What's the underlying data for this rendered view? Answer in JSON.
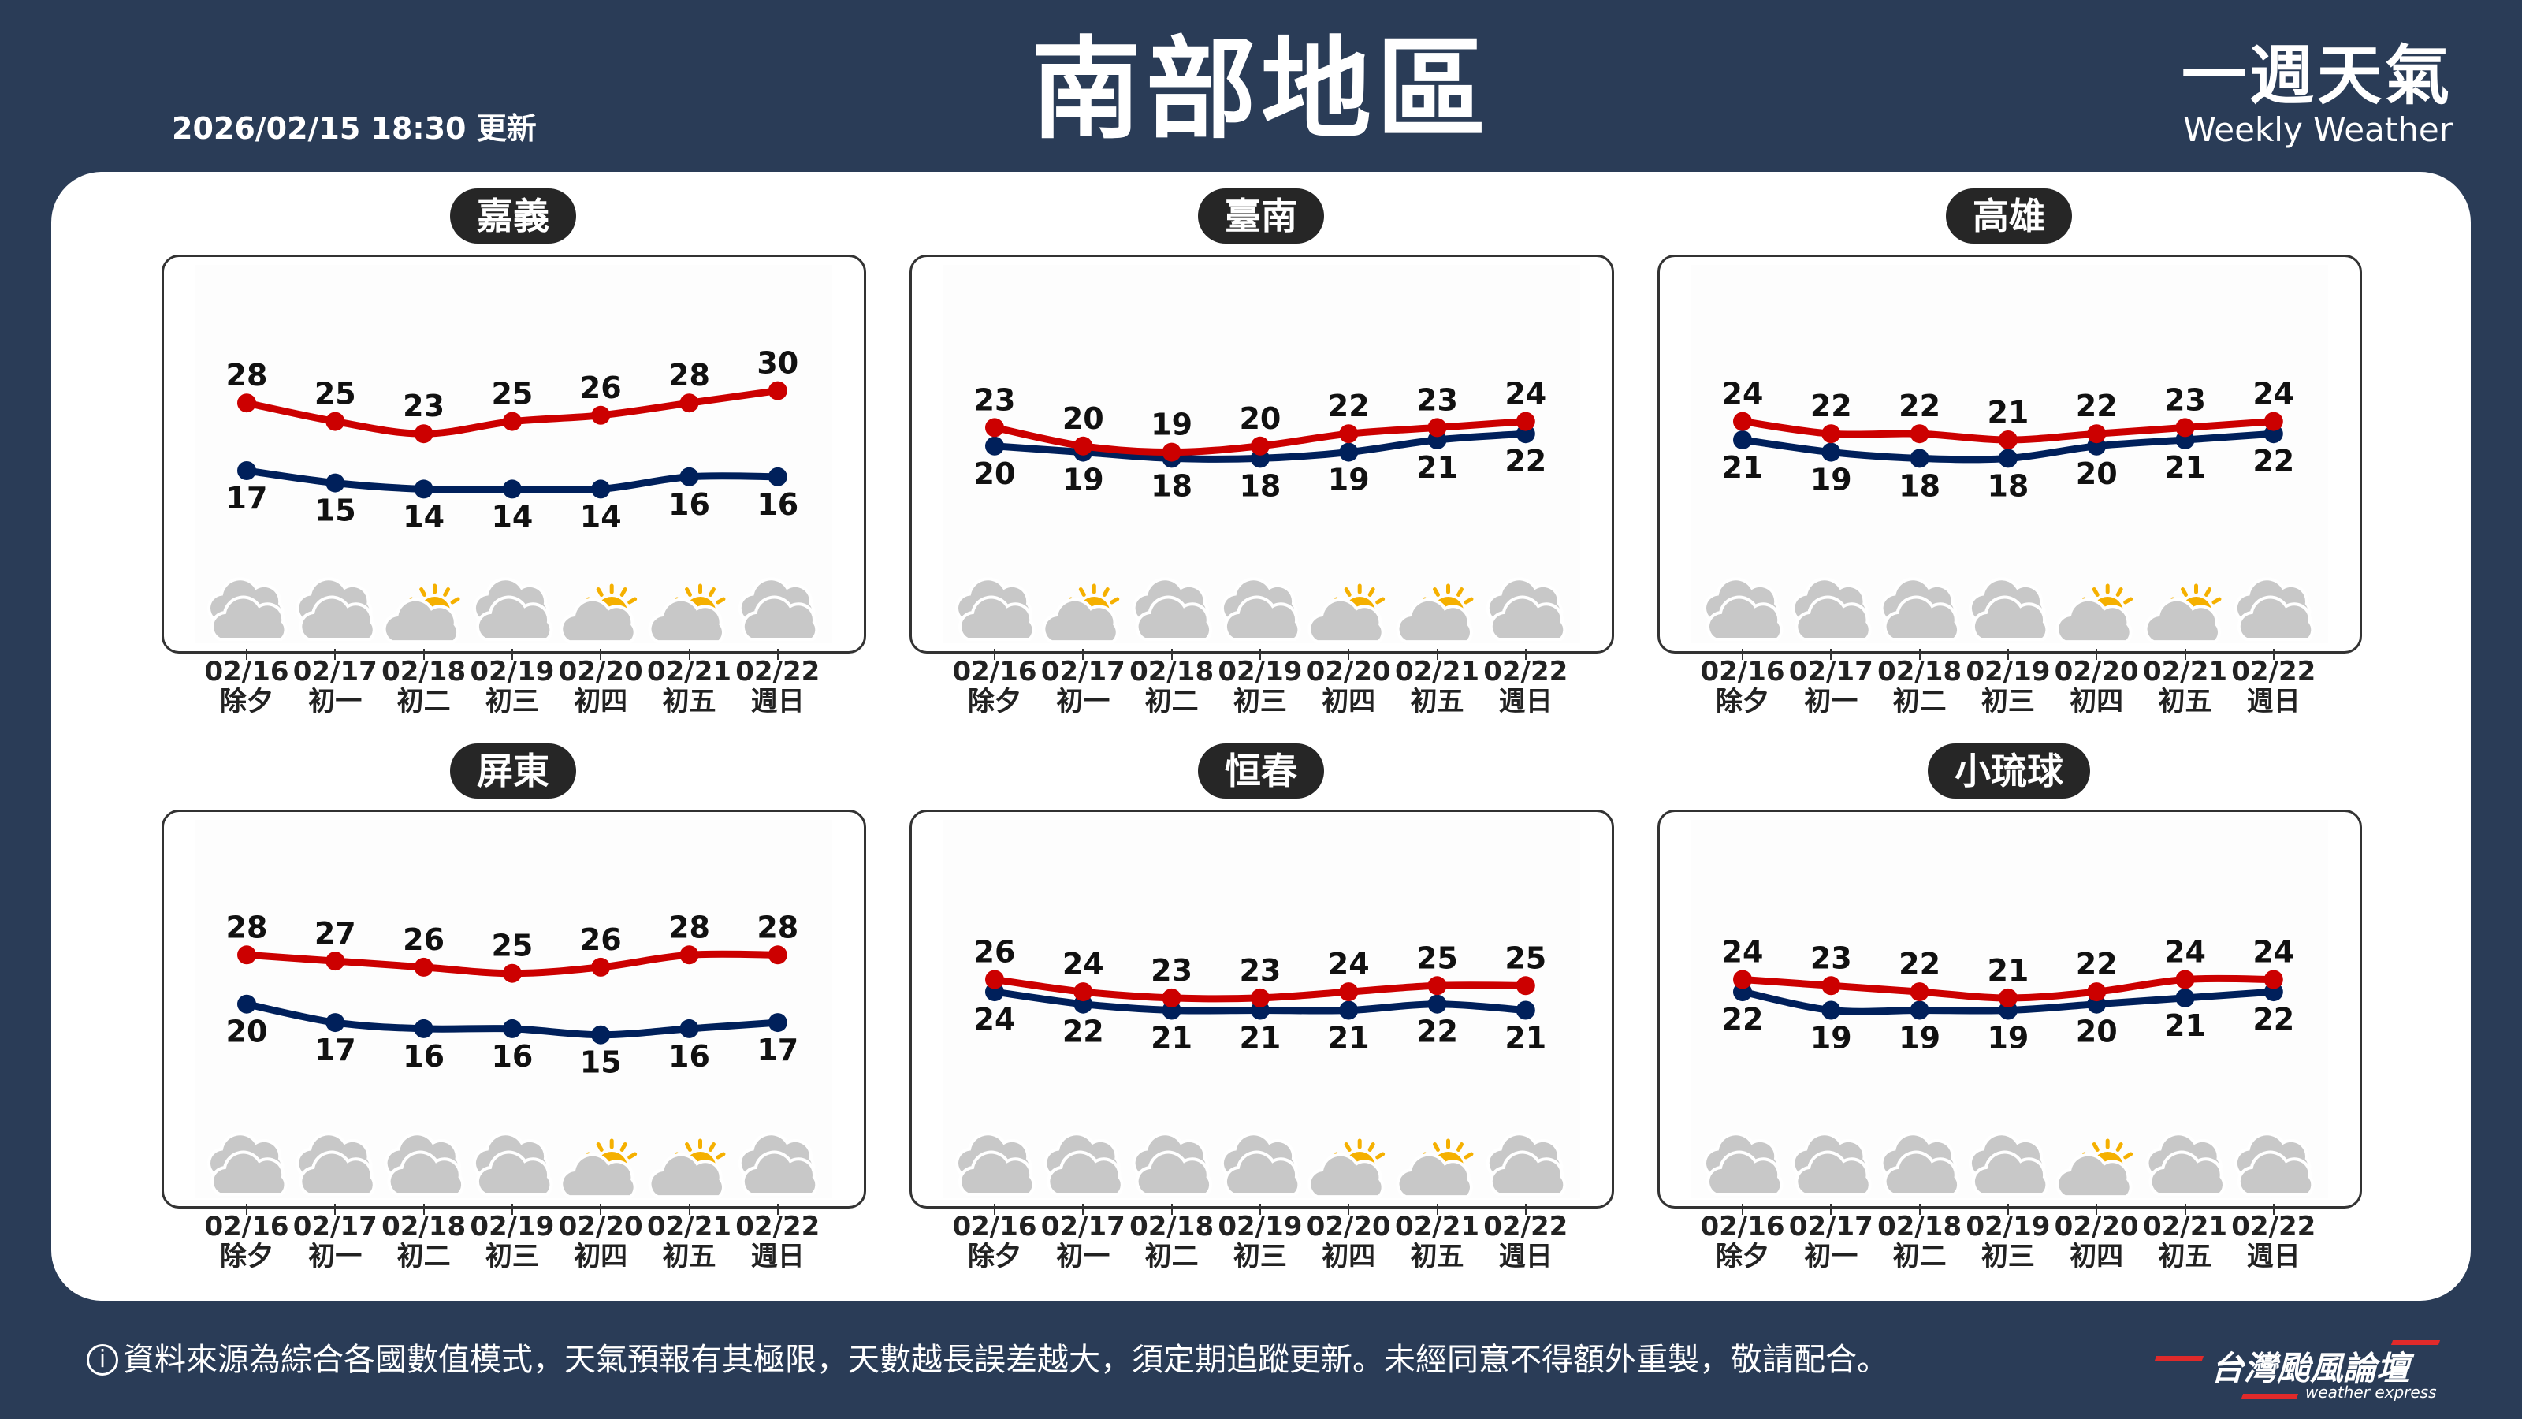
{
  "header": {
    "title": "南部地區",
    "updated": "2026/02/15 18:30 更新",
    "brand_zh": "一週天氣",
    "brand_en": "Weekly Weather"
  },
  "colors": {
    "background": "#2a3c57",
    "high": "#cc0000",
    "low": "#00205b",
    "sun": "#f5b000",
    "cloud": "#c8c8c8"
  },
  "days": [
    {
      "date": "02/16",
      "lunar": "除夕"
    },
    {
      "date": "02/17",
      "lunar": "初一"
    },
    {
      "date": "02/18",
      "lunar": "初二"
    },
    {
      "date": "02/19",
      "lunar": "初三"
    },
    {
      "date": "02/20",
      "lunar": "初四"
    },
    {
      "date": "02/21",
      "lunar": "初五"
    },
    {
      "date": "02/22",
      "lunar": "週日"
    }
  ],
  "panels": [
    {
      "name": "嘉義",
      "highs": [
        28,
        25,
        23,
        25,
        26,
        28,
        30
      ],
      "lows": [
        17,
        15,
        14,
        14,
        14,
        16,
        16
      ],
      "icons": [
        "cloudy",
        "cloudy",
        "partly-sunny",
        "cloudy",
        "partly-sunny",
        "partly-sunny",
        "cloudy"
      ]
    },
    {
      "name": "臺南",
      "highs": [
        23,
        20,
        19,
        20,
        22,
        23,
        24
      ],
      "lows": [
        20,
        19,
        18,
        18,
        19,
        21,
        22
      ],
      "icons": [
        "cloudy",
        "partly-sunny",
        "cloudy",
        "cloudy",
        "partly-sunny",
        "partly-sunny",
        "cloudy"
      ]
    },
    {
      "name": "高雄",
      "highs": [
        24,
        22,
        22,
        21,
        22,
        23,
        24
      ],
      "lows": [
        21,
        19,
        18,
        18,
        20,
        21,
        22
      ],
      "icons": [
        "cloudy",
        "cloudy",
        "cloudy",
        "cloudy",
        "partly-sunny",
        "partly-sunny",
        "cloudy"
      ]
    },
    {
      "name": "屏東",
      "highs": [
        28,
        27,
        26,
        25,
        26,
        28,
        28
      ],
      "lows": [
        20,
        17,
        16,
        16,
        15,
        16,
        17
      ],
      "icons": [
        "cloudy",
        "cloudy",
        "cloudy",
        "cloudy",
        "partly-sunny",
        "partly-sunny",
        "cloudy"
      ]
    },
    {
      "name": "恒春",
      "highs": [
        26,
        24,
        23,
        23,
        24,
        25,
        25
      ],
      "lows": [
        24,
        22,
        21,
        21,
        21,
        22,
        21
      ],
      "icons": [
        "cloudy",
        "cloudy",
        "cloudy",
        "cloudy",
        "partly-sunny",
        "partly-sunny",
        "cloudy"
      ]
    },
    {
      "name": "小琉球",
      "highs": [
        24,
        23,
        22,
        21,
        22,
        24,
        24
      ],
      "lows": [
        22,
        19,
        19,
        19,
        20,
        21,
        22
      ],
      "icons": [
        "cloudy",
        "cloudy",
        "cloudy",
        "cloudy",
        "partly-sunny",
        "cloudy",
        "cloudy"
      ]
    }
  ],
  "footer": {
    "icon": "info-icon",
    "disclaimer": "資料來源為綜合各國數值模式，天氣預報有其極限，天數越長誤差越大，須定期追蹤更新。未經同意不得額外重製，敬請配合。",
    "logo_zh": "台灣颱風論壇",
    "logo_en": "weather express"
  }
}
